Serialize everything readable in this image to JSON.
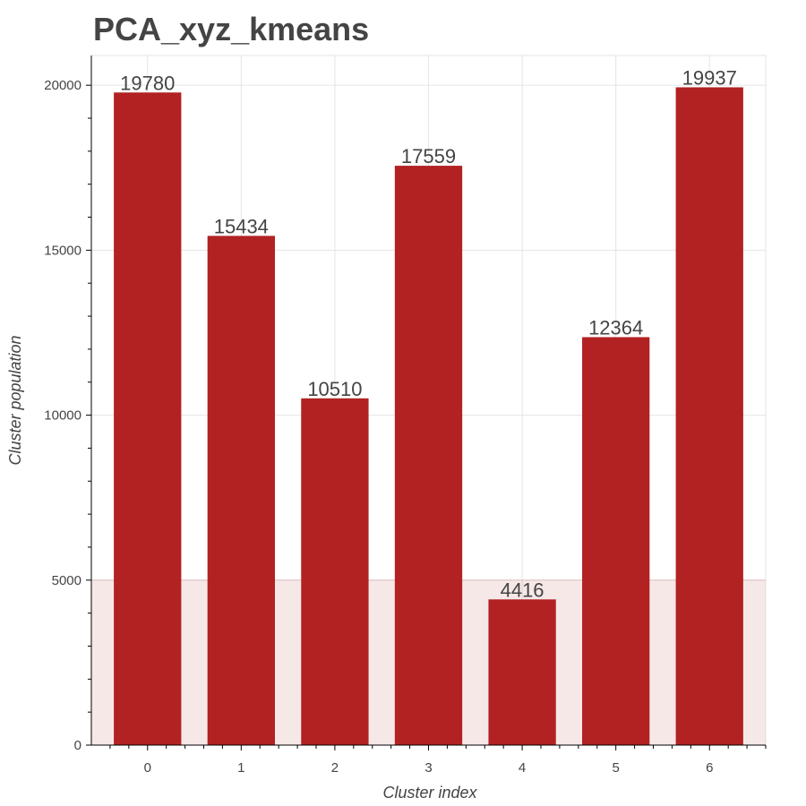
{
  "chart_data": {
    "type": "bar",
    "title": "PCA_xyz_kmeans",
    "xlabel": "Cluster index",
    "ylabel": "Cluster population",
    "categories": [
      "0",
      "1",
      "2",
      "3",
      "4",
      "5",
      "6"
    ],
    "values": [
      19780,
      15434,
      10510,
      17559,
      4416,
      12364,
      19937
    ],
    "data_labels": [
      "19780",
      "15434",
      "10510",
      "17559",
      "4416",
      "12364",
      "19937"
    ],
    "ylim": [
      0,
      20900
    ],
    "y_ticks": [
      0,
      5000,
      10000,
      15000,
      20000
    ],
    "y_tick_labels": [
      "0",
      "5000",
      "10000",
      "15000",
      "20000"
    ],
    "grid": true,
    "bar_color": "#b22222",
    "highlight_band": {
      "from": 0,
      "to": 5000,
      "color": "#b22222"
    }
  }
}
